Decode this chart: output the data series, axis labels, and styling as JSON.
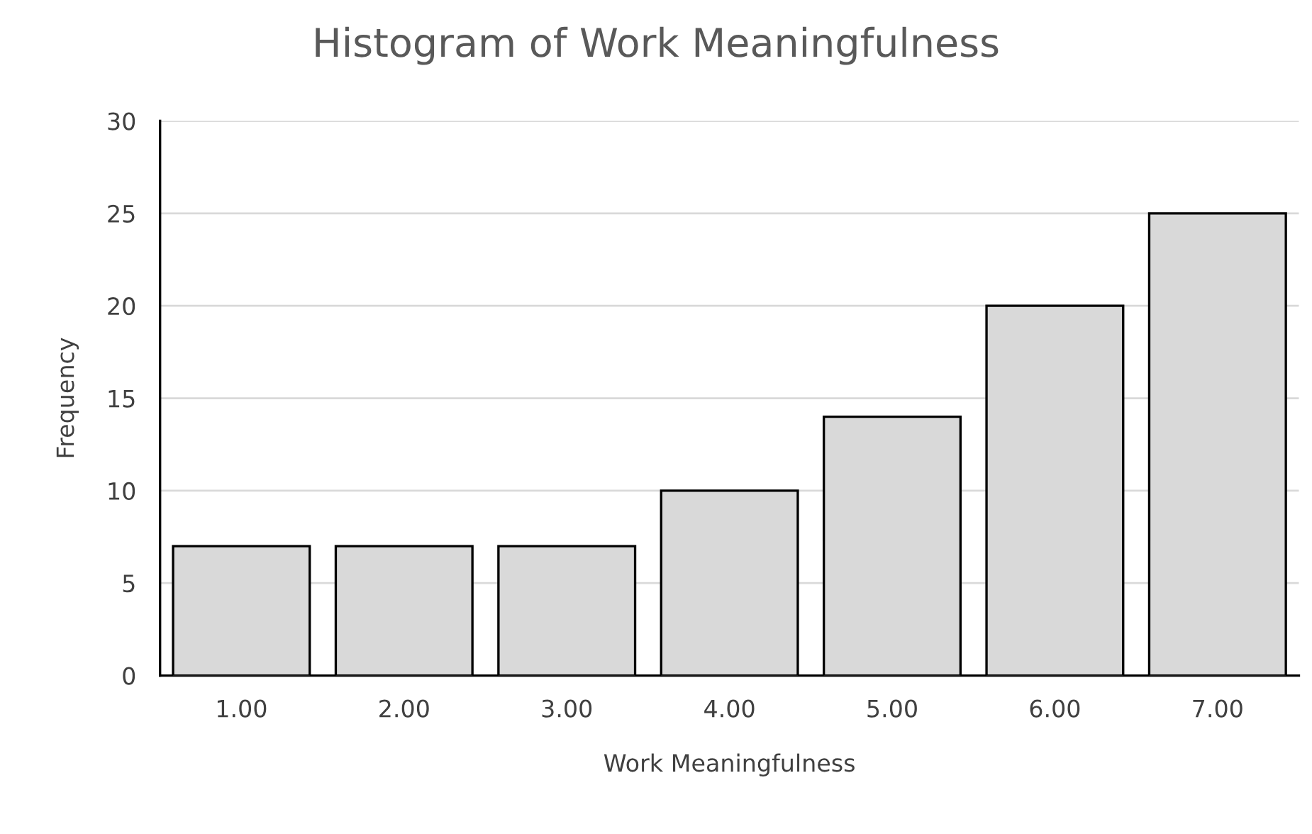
{
  "chart_data": {
    "type": "bar",
    "title": "Histogram of Work Meaningfulness",
    "xlabel": "Work Meaningfulness",
    "ylabel": "Frequency",
    "categories": [
      "1.00",
      "2.00",
      "3.00",
      "4.00",
      "5.00",
      "6.00",
      "7.00"
    ],
    "values": [
      7,
      7,
      7,
      10,
      14,
      20,
      25
    ],
    "color": "#d9d9d9",
    "ylim": [
      0,
      30
    ],
    "yticks": [
      0,
      5,
      10,
      15,
      20,
      25,
      30
    ],
    "grid": "y"
  }
}
